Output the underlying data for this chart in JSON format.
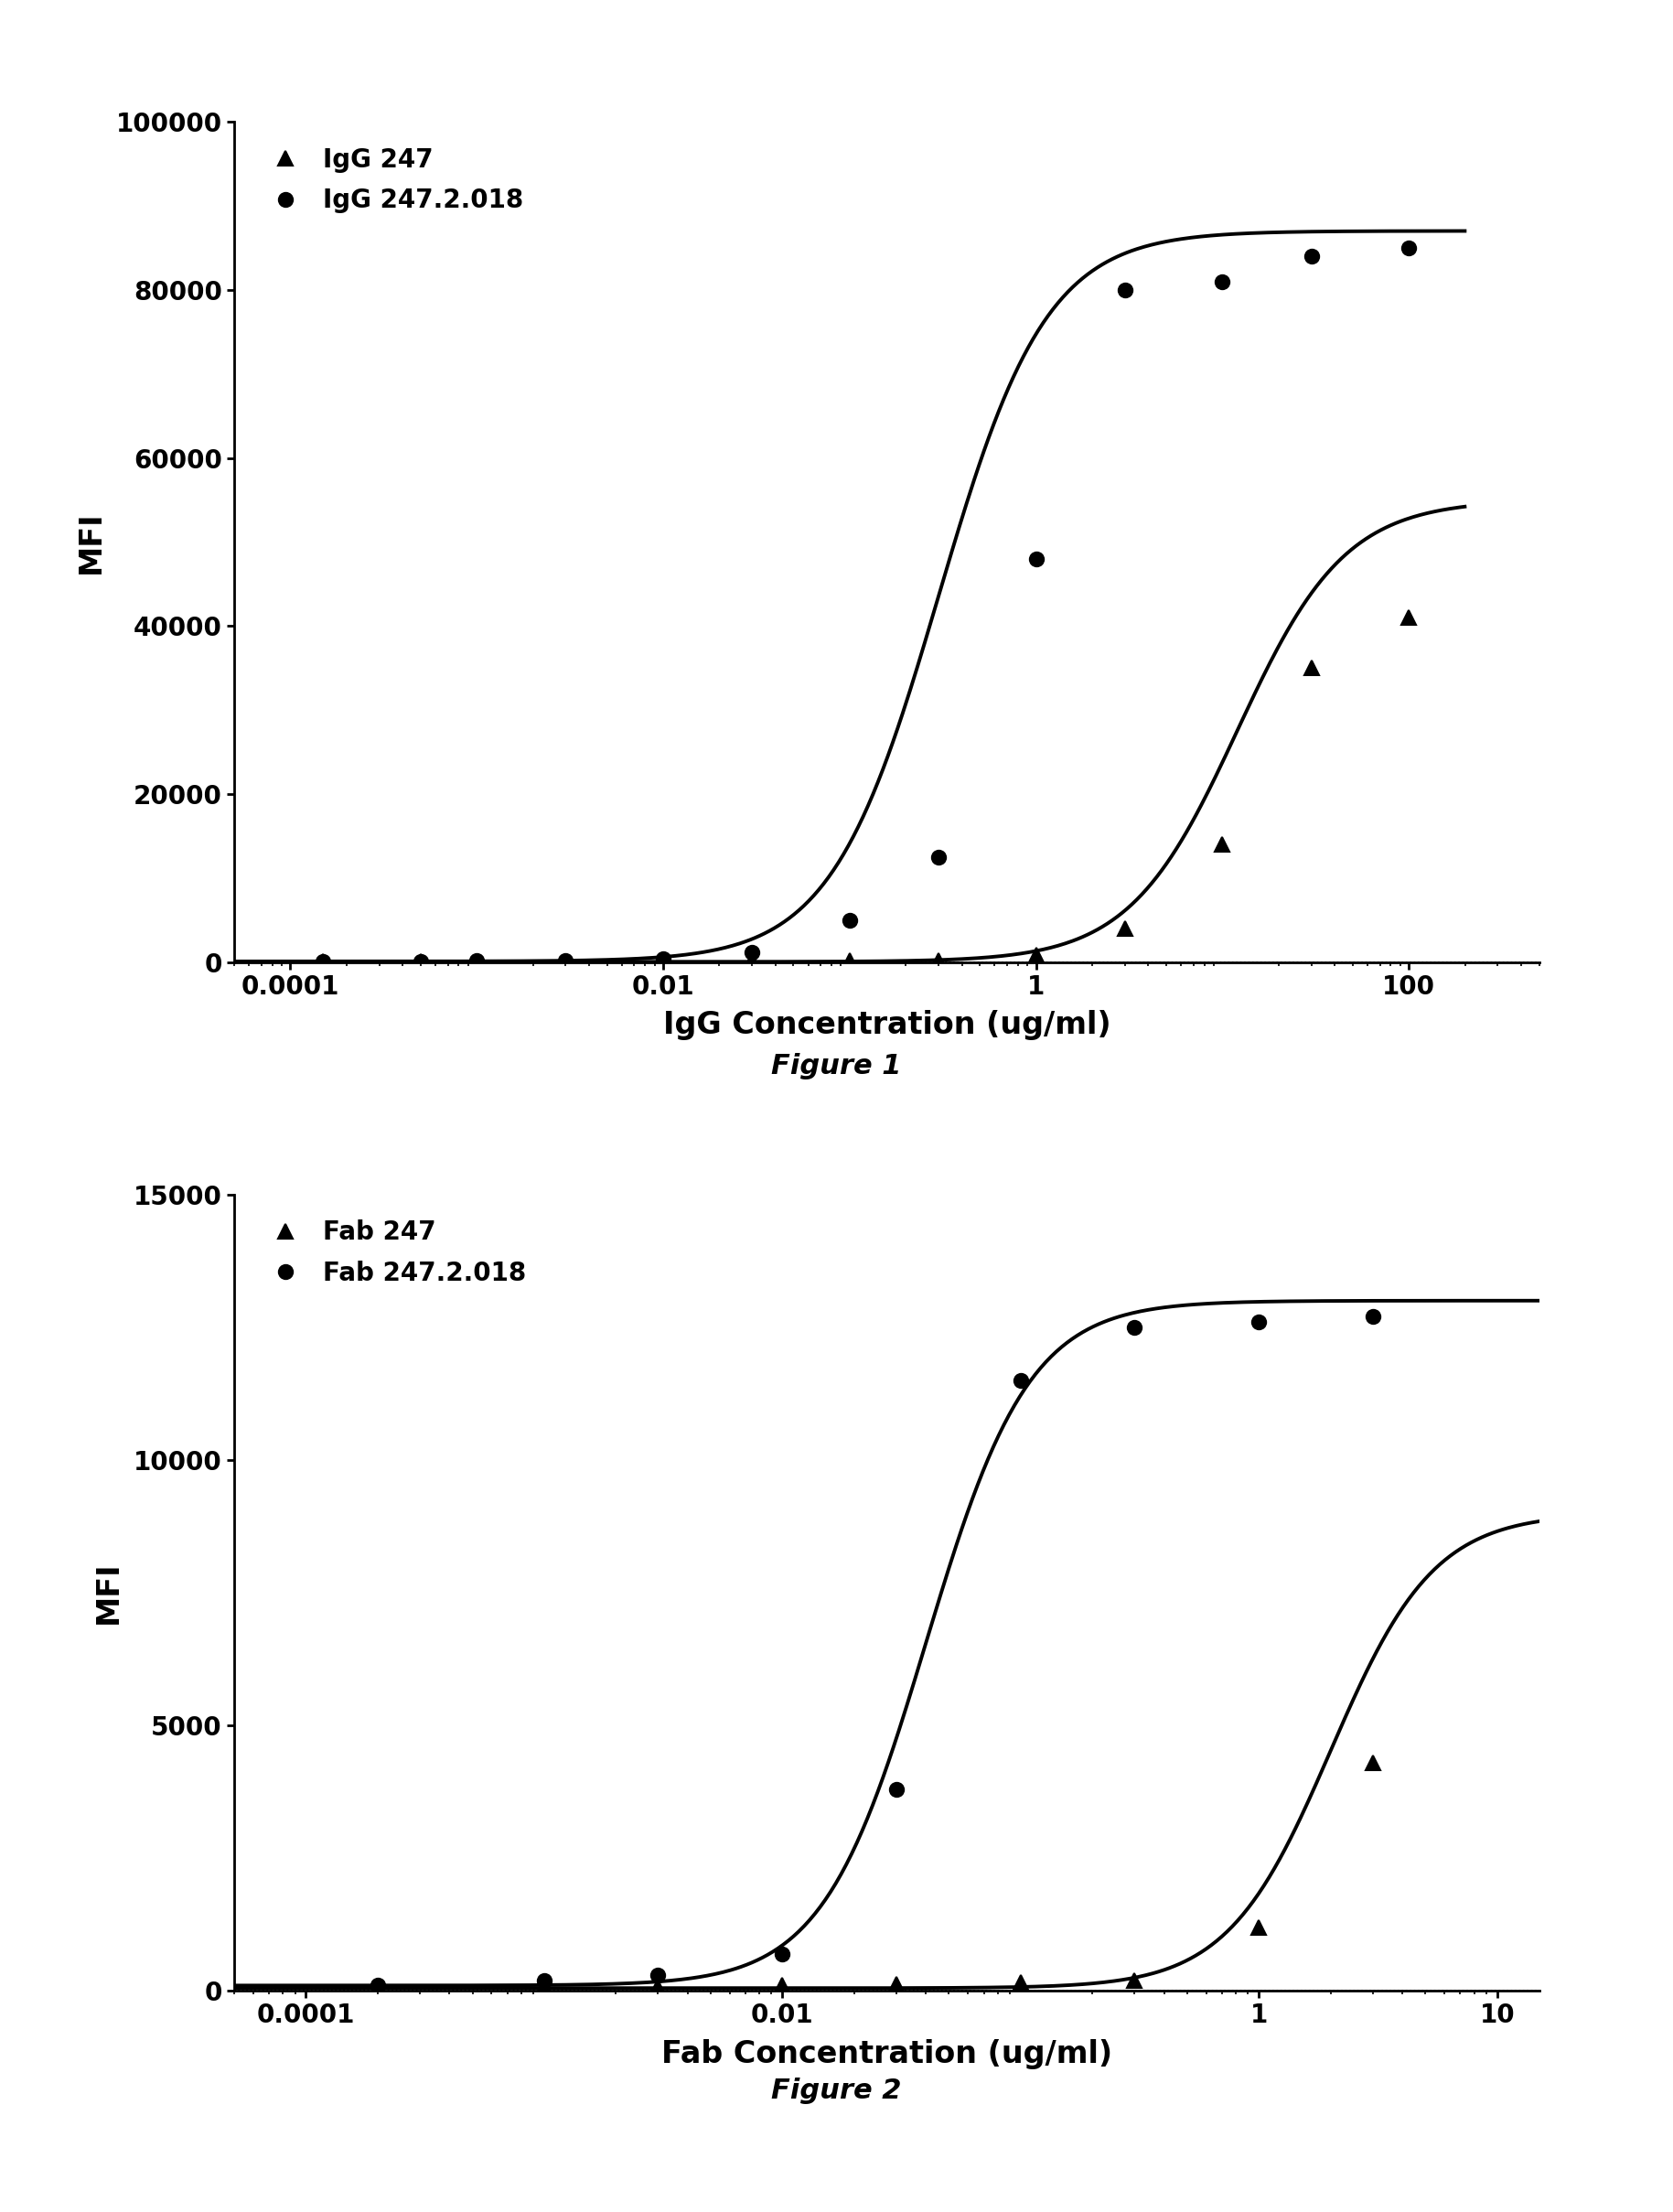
{
  "fig1": {
    "title": "Figure 1",
    "xlabel": "IgG Concentration (ug/ml)",
    "ylabel": "MFI",
    "ylim": [
      0,
      100000
    ],
    "yticks": [
      0,
      20000,
      40000,
      60000,
      80000,
      100000
    ],
    "xtick_labels": [
      "0.0001",
      "0.01",
      "1",
      "100"
    ],
    "xtick_vals": [
      0.0001,
      0.01,
      1,
      100
    ],
    "series": [
      {
        "label": "IgG 247",
        "marker": "^",
        "color": "#000000",
        "data_x": [
          0.00015,
          0.0005,
          0.001,
          0.003,
          0.01,
          0.03,
          0.1,
          0.3,
          1,
          3,
          10,
          30,
          100
        ],
        "data_y": [
          50,
          50,
          80,
          100,
          150,
          180,
          200,
          250,
          800,
          4000,
          14000,
          35000,
          41000
        ],
        "ec50": 12.0,
        "hillslope": 1.5,
        "bottom": 50,
        "top": 55000
      },
      {
        "label": "IgG 247.2.018",
        "marker": "o",
        "color": "#000000",
        "data_x": [
          0.00015,
          0.0005,
          0.001,
          0.003,
          0.01,
          0.03,
          0.1,
          0.3,
          1,
          3,
          10,
          30,
          100
        ],
        "data_y": [
          100,
          120,
          150,
          200,
          400,
          1200,
          5000,
          12500,
          48000,
          80000,
          81000,
          84000,
          85000
        ],
        "ec50": 0.3,
        "hillslope": 1.5,
        "bottom": 100,
        "top": 87000
      }
    ]
  },
  "fig2": {
    "title": "Figure 2",
    "xlabel": "Fab Concentration (ug/ml)",
    "ylabel": "MFI",
    "ylim": [
      0,
      15000
    ],
    "yticks": [
      0,
      5000,
      10000,
      15000
    ],
    "xtick_labels": [
      "0.0001",
      "0.01",
      "1",
      "10"
    ],
    "xtick_vals": [
      0.0001,
      0.01,
      1,
      10
    ],
    "series": [
      {
        "label": "Fab 247",
        "marker": "^",
        "color": "#000000",
        "data_x": [
          0.0002,
          0.001,
          0.003,
          0.01,
          0.03,
          0.1,
          0.3,
          1,
          3
        ],
        "data_y": [
          50,
          60,
          80,
          100,
          120,
          150,
          200,
          1200,
          4300
        ],
        "ec50": 2.0,
        "hillslope": 2.0,
        "bottom": 50,
        "top": 9000
      },
      {
        "label": "Fab 247.2.018",
        "marker": "o",
        "color": "#000000",
        "data_x": [
          0.0002,
          0.001,
          0.003,
          0.01,
          0.03,
          0.1,
          0.3,
          1,
          3
        ],
        "data_y": [
          100,
          200,
          300,
          700,
          3800,
          11500,
          12500,
          12600,
          12700
        ],
        "ec50": 0.04,
        "hillslope": 2.0,
        "bottom": 100,
        "top": 13000
      }
    ]
  },
  "background_color": "#ffffff",
  "spine_color": "#000000",
  "tick_color": "#000000",
  "label_fontsize": 24,
  "tick_fontsize": 20,
  "legend_fontsize": 20,
  "figure_label_fontsize": 22,
  "line_width": 2.8,
  "marker_size": 11,
  "marker_edge_width": 1.5
}
